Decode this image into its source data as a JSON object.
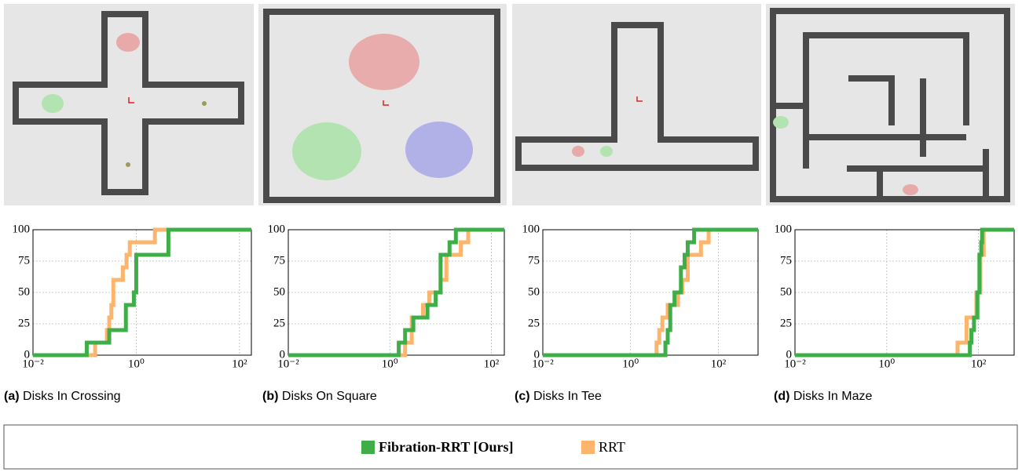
{
  "chart_data": [
    {
      "type": "line",
      "label": "(a)",
      "title": "Disks In Crossing",
      "xscale": "log",
      "xlim": [
        0.01,
        170
      ],
      "ylim": [
        0,
        100
      ],
      "xticks": [
        {
          "value": 0.01,
          "label": "10⁻²"
        },
        {
          "value": 1,
          "label": "10⁰"
        },
        {
          "value": 100,
          "label": "10²"
        }
      ],
      "yticks": [
        0,
        25,
        50,
        75,
        100
      ],
      "grid": true,
      "series": [
        {
          "name": "Fibration-RRT [Ours]",
          "color": "#3fae49",
          "x": [
            0.01,
            0.11,
            0.3,
            0.63,
            0.9,
            1.0,
            4.2
          ],
          "values": [
            0,
            10,
            20,
            40,
            50,
            80,
            100
          ]
        },
        {
          "name": "RRT",
          "color": "#fdb46c",
          "x": [
            0.01,
            0.16,
            0.27,
            0.3,
            0.33,
            0.36,
            0.55,
            0.65,
            0.75,
            2.3
          ],
          "values": [
            0,
            10,
            20,
            30,
            40,
            60,
            70,
            80,
            90,
            100
          ]
        }
      ]
    },
    {
      "type": "line",
      "label": "(b)",
      "title": "Disks On Square",
      "xscale": "log",
      "xlim": [
        0.01,
        180
      ],
      "ylim": [
        0,
        100
      ],
      "xticks": [
        {
          "value": 0.01,
          "label": "10⁻²"
        },
        {
          "value": 1,
          "label": "10⁰"
        },
        {
          "value": 100,
          "label": "10²"
        }
      ],
      "yticks": [
        0,
        25,
        50,
        75,
        100
      ],
      "grid": true,
      "series": [
        {
          "name": "Fibration-RRT [Ours]",
          "color": "#3fae49",
          "x": [
            0.01,
            1.5,
            2.0,
            2.9,
            5.5,
            8,
            10,
            15,
            20
          ],
          "values": [
            0,
            10,
            20,
            30,
            40,
            50,
            80,
            90,
            100
          ]
        },
        {
          "name": "RRT",
          "color": "#fdb46c",
          "x": [
            0.01,
            2.0,
            2.7,
            4.5,
            6,
            10,
            13,
            25,
            35
          ],
          "values": [
            0,
            10,
            30,
            40,
            50,
            60,
            80,
            90,
            100
          ]
        }
      ]
    },
    {
      "type": "line",
      "label": "(c)",
      "title": "Disks In Tee",
      "xscale": "log",
      "xlim": [
        0.01,
        800
      ],
      "ylim": [
        0,
        100
      ],
      "xticks": [
        {
          "value": 0.01,
          "label": "10⁻²"
        },
        {
          "value": 1,
          "label": "10⁰"
        },
        {
          "value": 100,
          "label": "10²"
        }
      ],
      "yticks": [
        0,
        25,
        50,
        75,
        100
      ],
      "grid": true,
      "series": [
        {
          "name": "Fibration-RRT [Ours]",
          "color": "#3fae49",
          "x": [
            0.01,
            6.2,
            7,
            8,
            10,
            14,
            17,
            20,
            28
          ],
          "values": [
            0,
            10,
            20,
            40,
            50,
            70,
            80,
            90,
            100
          ]
        },
        {
          "name": "RRT",
          "color": "#fdb46c",
          "x": [
            0.01,
            3.9,
            4.5,
            5.3,
            7,
            12,
            15,
            20,
            40,
            60
          ],
          "values": [
            0,
            10,
            20,
            30,
            40,
            50,
            60,
            80,
            90,
            100
          ]
        }
      ]
    },
    {
      "type": "line",
      "label": "(d)",
      "title": "Disks In Maze",
      "xscale": "log",
      "xlim": [
        0.01,
        600
      ],
      "ylim": [
        0,
        100
      ],
      "xticks": [
        {
          "value": 0.01,
          "label": "10⁻²"
        },
        {
          "value": 1,
          "label": "10⁰"
        },
        {
          "value": 100,
          "label": "10²"
        }
      ],
      "yticks": [
        0,
        25,
        50,
        75,
        100
      ],
      "grid": true,
      "series": [
        {
          "name": "Fibration-RRT [Ours]",
          "color": "#3fae49",
          "x": [
            0.01,
            65,
            70,
            80,
            95,
            105,
            115,
            120
          ],
          "values": [
            0,
            10,
            20,
            30,
            50,
            80,
            90,
            100
          ]
        },
        {
          "name": "RRT",
          "color": "#fdb46c",
          "x": [
            0.01,
            35,
            55,
            90,
            110,
            130
          ],
          "values": [
            0,
            10,
            30,
            50,
            80,
            100
          ]
        }
      ]
    }
  ]
}
